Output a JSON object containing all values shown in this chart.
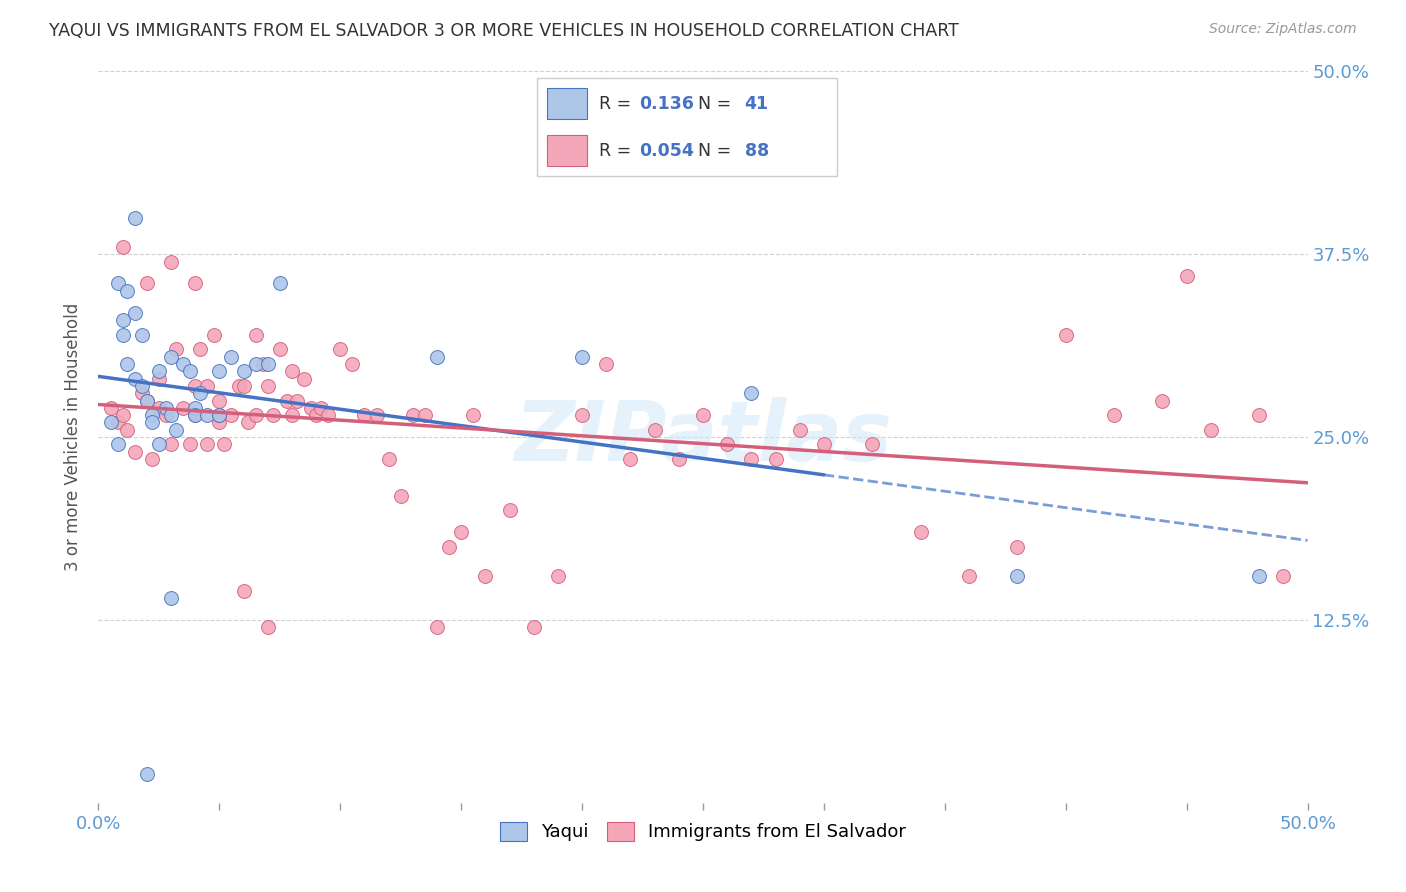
{
  "title": "YAQUI VS IMMIGRANTS FROM EL SALVADOR 3 OR MORE VEHICLES IN HOUSEHOLD CORRELATION CHART",
  "source": "Source: ZipAtlas.com",
  "ylabel": "3 or more Vehicles in Household",
  "legend_label1": "Yaqui",
  "legend_label2": "Immigrants from El Salvador",
  "R1": "0.136",
  "N1": "41",
  "R2": "0.054",
  "N2": "88",
  "color_blue": "#aec6e8",
  "color_pink": "#f4a7b9",
  "line_color_blue": "#4472c4",
  "line_color_pink": "#d45f7a",
  "watermark": "ZIPatlas",
  "xlim": [
    0.0,
    0.5
  ],
  "ylim": [
    0.0,
    0.5
  ],
  "yaqui_x": [
    0.005,
    0.008,
    0.01,
    0.012,
    0.015,
    0.015,
    0.018,
    0.02,
    0.022,
    0.025,
    0.025,
    0.028,
    0.03,
    0.03,
    0.032,
    0.035,
    0.038,
    0.04,
    0.04,
    0.042,
    0.045,
    0.05,
    0.05,
    0.055,
    0.06,
    0.065,
    0.07,
    0.075,
    0.01,
    0.015,
    0.02,
    0.14,
    0.2,
    0.27,
    0.38,
    0.48,
    0.008,
    0.012,
    0.018,
    0.022,
    0.03
  ],
  "yaqui_y": [
    0.26,
    0.245,
    0.32,
    0.3,
    0.29,
    0.335,
    0.285,
    0.275,
    0.265,
    0.295,
    0.245,
    0.27,
    0.265,
    0.305,
    0.255,
    0.3,
    0.295,
    0.27,
    0.265,
    0.28,
    0.265,
    0.295,
    0.265,
    0.305,
    0.295,
    0.3,
    0.3,
    0.355,
    0.33,
    0.4,
    0.02,
    0.305,
    0.305,
    0.28,
    0.155,
    0.155,
    0.355,
    0.35,
    0.32,
    0.26,
    0.14
  ],
  "salvador_x": [
    0.005,
    0.008,
    0.01,
    0.012,
    0.015,
    0.018,
    0.02,
    0.022,
    0.025,
    0.025,
    0.028,
    0.03,
    0.032,
    0.035,
    0.038,
    0.04,
    0.04,
    0.042,
    0.045,
    0.045,
    0.048,
    0.05,
    0.05,
    0.052,
    0.055,
    0.058,
    0.06,
    0.062,
    0.065,
    0.065,
    0.068,
    0.07,
    0.072,
    0.075,
    0.078,
    0.08,
    0.082,
    0.085,
    0.088,
    0.09,
    0.092,
    0.095,
    0.1,
    0.105,
    0.11,
    0.115,
    0.12,
    0.125,
    0.13,
    0.135,
    0.14,
    0.145,
    0.15,
    0.155,
    0.16,
    0.17,
    0.18,
    0.19,
    0.2,
    0.21,
    0.22,
    0.23,
    0.24,
    0.25,
    0.26,
    0.27,
    0.28,
    0.29,
    0.3,
    0.32,
    0.34,
    0.36,
    0.38,
    0.4,
    0.42,
    0.44,
    0.45,
    0.46,
    0.48,
    0.49,
    0.01,
    0.02,
    0.03,
    0.04,
    0.05,
    0.06,
    0.07,
    0.08
  ],
  "salvador_y": [
    0.27,
    0.26,
    0.265,
    0.255,
    0.24,
    0.28,
    0.275,
    0.235,
    0.27,
    0.29,
    0.265,
    0.245,
    0.31,
    0.27,
    0.245,
    0.285,
    0.265,
    0.31,
    0.285,
    0.245,
    0.32,
    0.275,
    0.26,
    0.245,
    0.265,
    0.285,
    0.285,
    0.26,
    0.32,
    0.265,
    0.3,
    0.285,
    0.265,
    0.31,
    0.275,
    0.295,
    0.275,
    0.29,
    0.27,
    0.265,
    0.27,
    0.265,
    0.31,
    0.3,
    0.265,
    0.265,
    0.235,
    0.21,
    0.265,
    0.265,
    0.12,
    0.175,
    0.185,
    0.265,
    0.155,
    0.2,
    0.12,
    0.155,
    0.265,
    0.3,
    0.235,
    0.255,
    0.235,
    0.265,
    0.245,
    0.235,
    0.235,
    0.255,
    0.245,
    0.245,
    0.185,
    0.155,
    0.175,
    0.32,
    0.265,
    0.275,
    0.36,
    0.255,
    0.265,
    0.155,
    0.38,
    0.355,
    0.37,
    0.355,
    0.265,
    0.145,
    0.12,
    0.265
  ]
}
